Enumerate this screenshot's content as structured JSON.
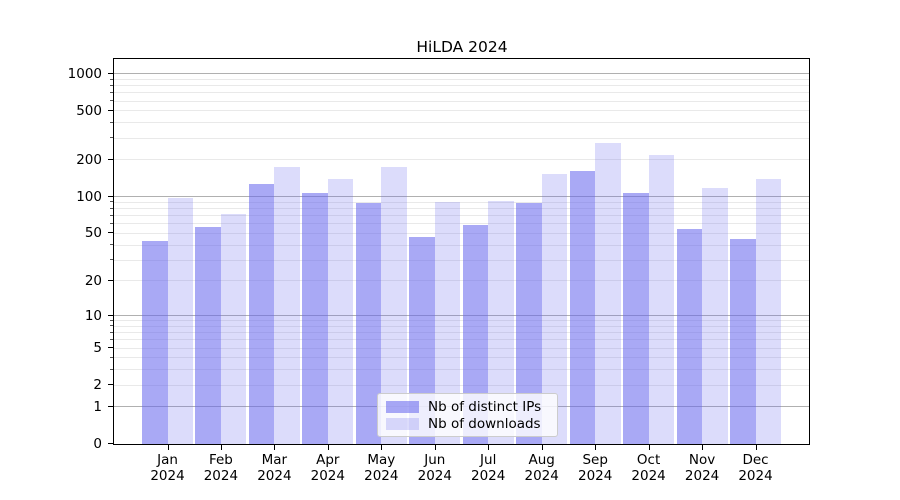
{
  "title": "HiLDA 2024",
  "colors": {
    "bar_distinct_ips": "rgba(102,102,238,0.56)",
    "bar_downloads": "rgba(102,102,238,0.23)",
    "grid_major": "#b0b0b0",
    "grid_minor": "#e9e9e9",
    "axis_line": "#000000"
  },
  "legend": {
    "items": [
      {
        "label": "Nb of distinct IPs",
        "series": "distinct-ips"
      },
      {
        "label": "Nb of downloads",
        "series": "downloads"
      }
    ]
  },
  "x_axis": {
    "months": [
      "Jan",
      "Feb",
      "Mar",
      "Apr",
      "May",
      "Jun",
      "Jul",
      "Aug",
      "Sep",
      "Oct",
      "Nov",
      "Dec"
    ],
    "year": "2024"
  },
  "chart_data": {
    "type": "bar",
    "title": "HiLDA 2024",
    "categories": [
      "Jan 2024",
      "Feb 2024",
      "Mar 2024",
      "Apr 2024",
      "May 2024",
      "Jun 2024",
      "Jul 2024",
      "Aug 2024",
      "Sep 2024",
      "Oct 2024",
      "Nov 2024",
      "Dec 2024"
    ],
    "series": [
      {
        "name": "Nb of distinct IPs",
        "values": [
          43,
          56,
          128,
          108,
          89,
          47,
          59,
          89,
          163,
          108,
          54,
          45
        ]
      },
      {
        "name": "Nb of downloads",
        "values": [
          97,
          72,
          176,
          140,
          175,
          90,
          93,
          155,
          276,
          220,
          117,
          140
        ]
      }
    ],
    "yscale": "log1p",
    "ylim": [
      0,
      1320
    ],
    "y_ticks": [
      0,
      1,
      2,
      5,
      10,
      20,
      50,
      100,
      200,
      500,
      1000
    ],
    "y_minor_ticks": [
      3,
      4,
      6,
      7,
      8,
      9,
      30,
      40,
      60,
      70,
      80,
      90,
      300,
      400,
      600,
      700,
      800,
      900
    ],
    "grid": true,
    "legend_position": "lower center"
  }
}
